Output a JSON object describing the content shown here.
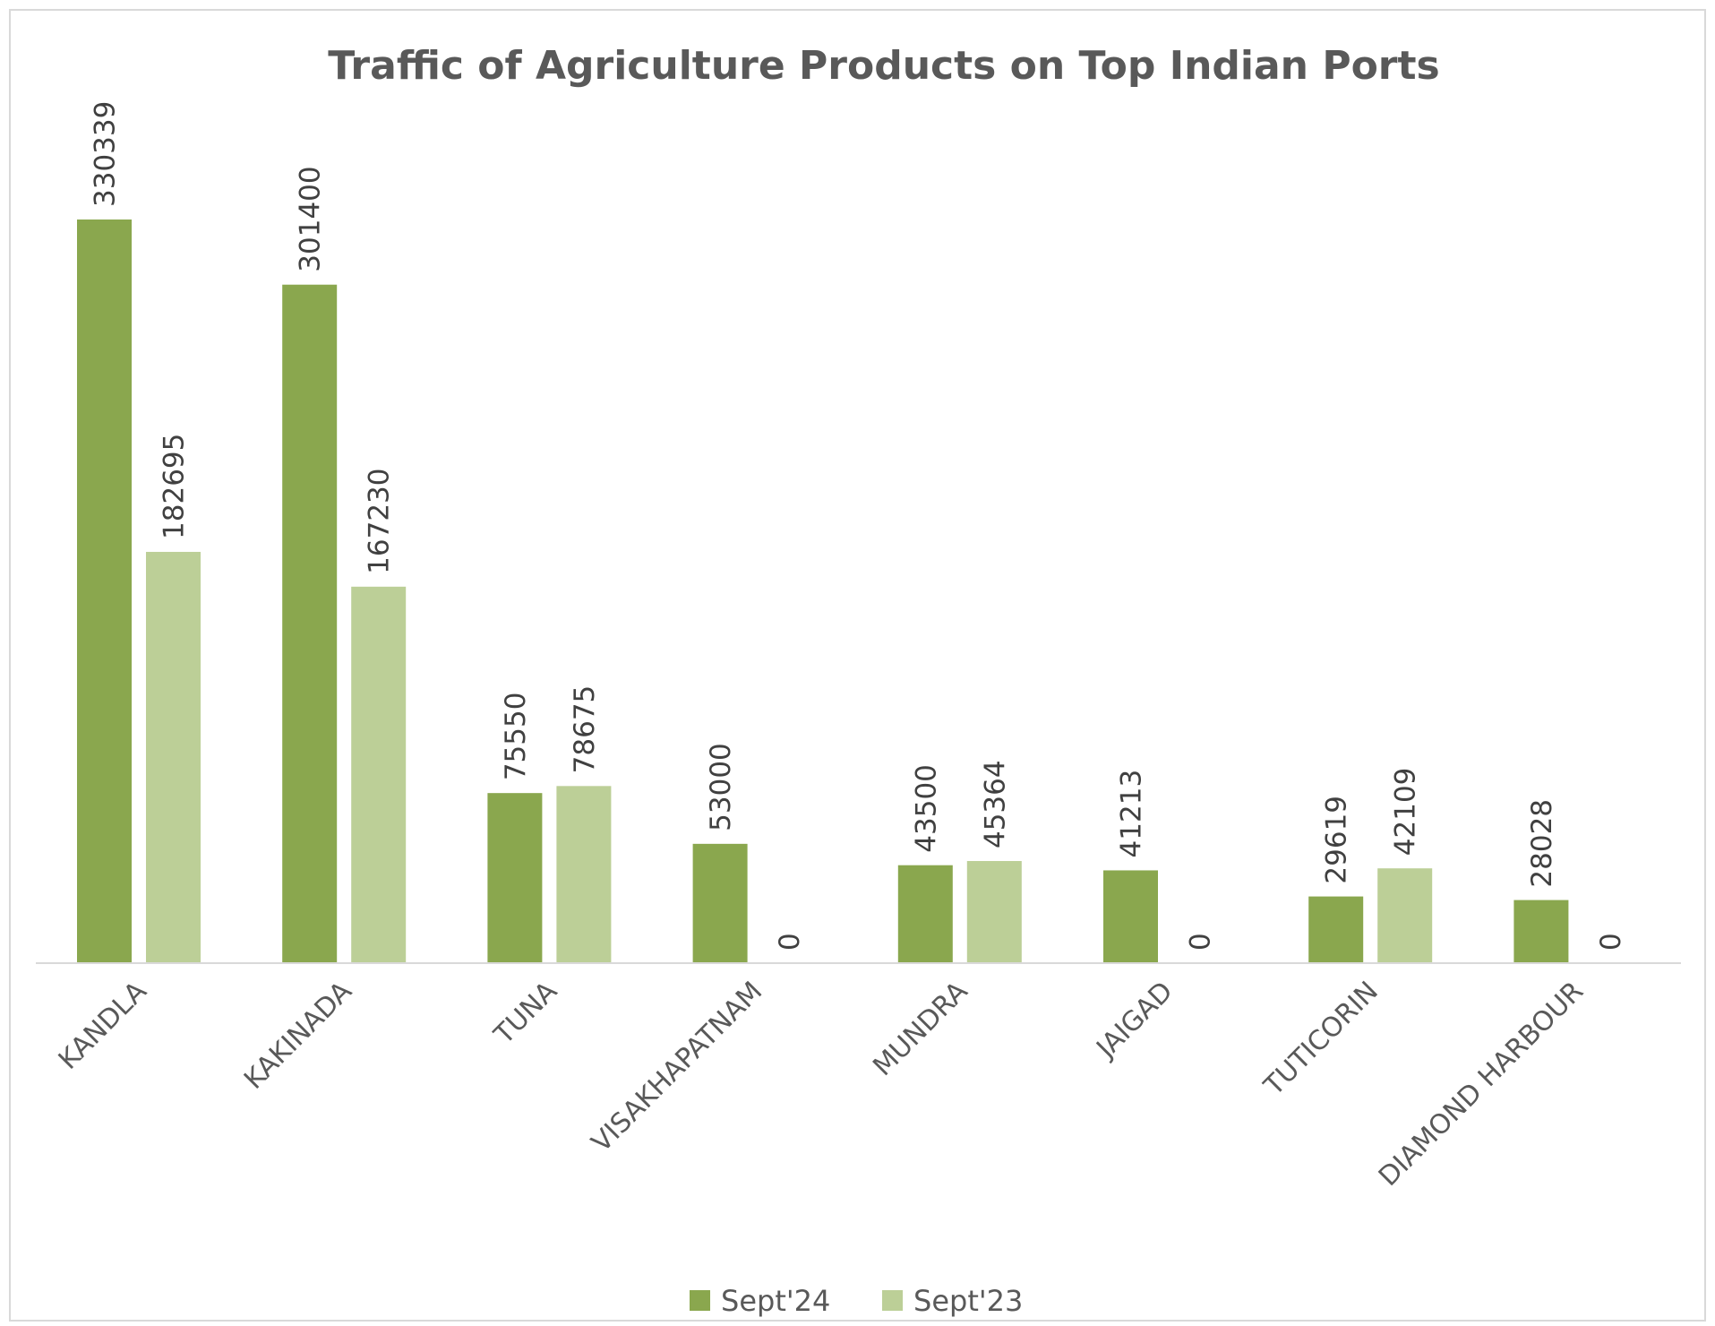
{
  "chart_data": {
    "type": "bar",
    "title": "Traffic of Agriculture Products on Top Indian Ports",
    "xlabel": "",
    "ylabel": "",
    "categories": [
      "KANDLA",
      "KAKINADA",
      "TUNA",
      "VISAKHAPATNAM",
      "MUNDRA",
      "JAIGAD",
      "TUTICORIN",
      "DIAMOND HARBOUR"
    ],
    "series": [
      {
        "name": "Sept'24",
        "color": "#8aa74e",
        "values": [
          330339,
          301400,
          75550,
          53000,
          43500,
          41213,
          29619,
          28028
        ]
      },
      {
        "name": "Sept'23",
        "color": "#bccf97",
        "values": [
          182695,
          167230,
          78675,
          0,
          45364,
          0,
          42109,
          0
        ]
      }
    ],
    "ylim": [
      0,
      330339
    ],
    "grid": false,
    "legend_position": "bottom",
    "data_labels": true
  }
}
